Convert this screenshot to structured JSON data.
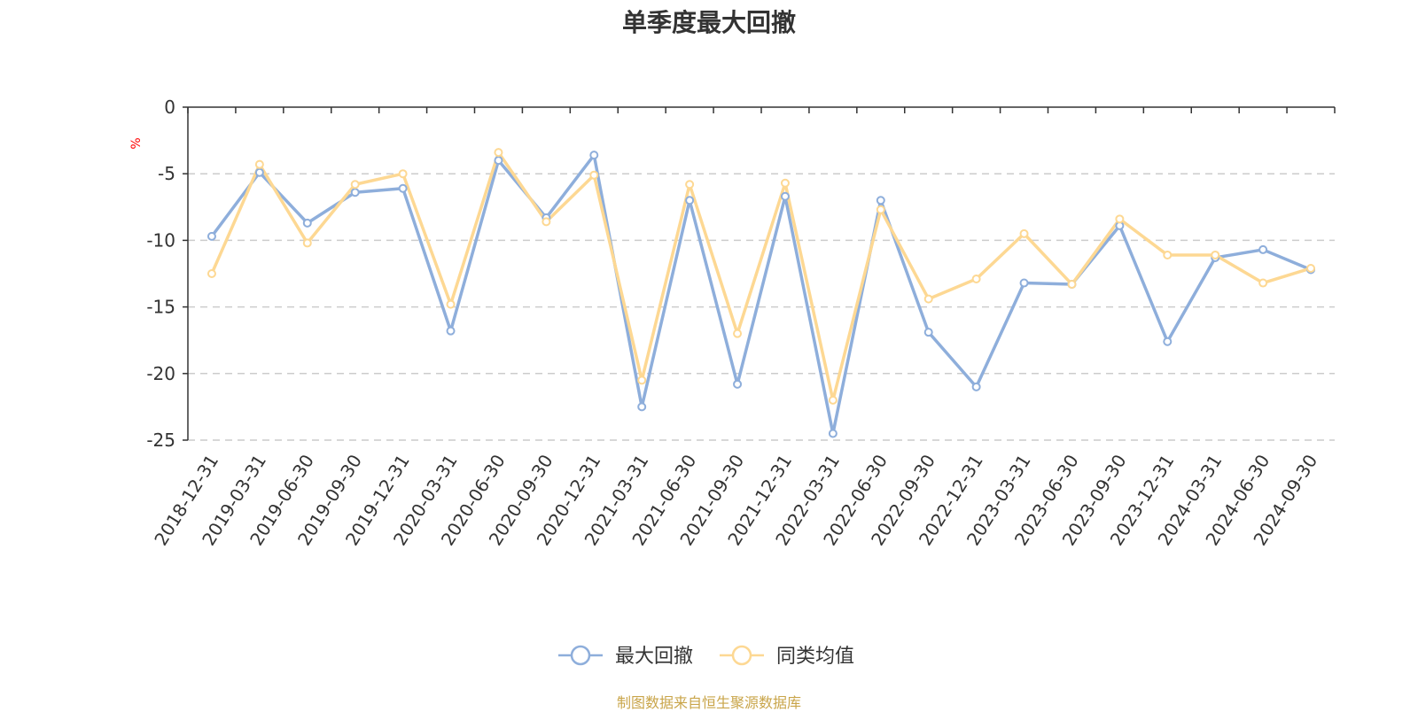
{
  "chart_data": {
    "type": "line",
    "title": "单季度最大回撤",
    "ylabel": "%",
    "ylim": [
      -25,
      0
    ],
    "yticks": [
      0,
      -5,
      -10,
      -15,
      -20,
      -25
    ],
    "grid": true,
    "legend_position": "bottom",
    "categories": [
      "2018-12-31",
      "2019-03-31",
      "2019-06-30",
      "2019-09-30",
      "2019-12-31",
      "2020-03-31",
      "2020-06-30",
      "2020-09-30",
      "2020-12-31",
      "2021-03-31",
      "2021-06-30",
      "2021-09-30",
      "2021-12-31",
      "2022-03-31",
      "2022-06-30",
      "2022-09-30",
      "2022-12-31",
      "2023-03-31",
      "2023-06-30",
      "2023-09-30",
      "2023-12-31",
      "2024-03-31",
      "2024-06-30",
      "2024-09-30"
    ],
    "series": [
      {
        "name": "最大回撤",
        "color": "#8eaedb",
        "values": [
          -9.7,
          -4.9,
          -8.7,
          -6.4,
          -6.1,
          -16.8,
          -4.0,
          -8.3,
          -3.6,
          -22.5,
          -7.0,
          -20.8,
          -6.7,
          -24.5,
          -7.0,
          -16.9,
          -21.0,
          -13.2,
          -13.3,
          -8.9,
          -17.6,
          -11.3,
          -10.7,
          -12.2
        ]
      },
      {
        "name": "同类均值",
        "color": "#fdd893",
        "values": [
          -12.5,
          -4.3,
          -10.2,
          -5.8,
          -5.0,
          -14.8,
          -3.4,
          -8.6,
          -5.1,
          -20.5,
          -5.8,
          -17.0,
          -5.7,
          -22.0,
          -7.7,
          -14.4,
          -12.9,
          -9.5,
          -13.3,
          -8.4,
          -11.1,
          -11.1,
          -13.2,
          -12.1
        ]
      }
    ]
  },
  "source_note": "制图数据来自恒生聚源数据库"
}
